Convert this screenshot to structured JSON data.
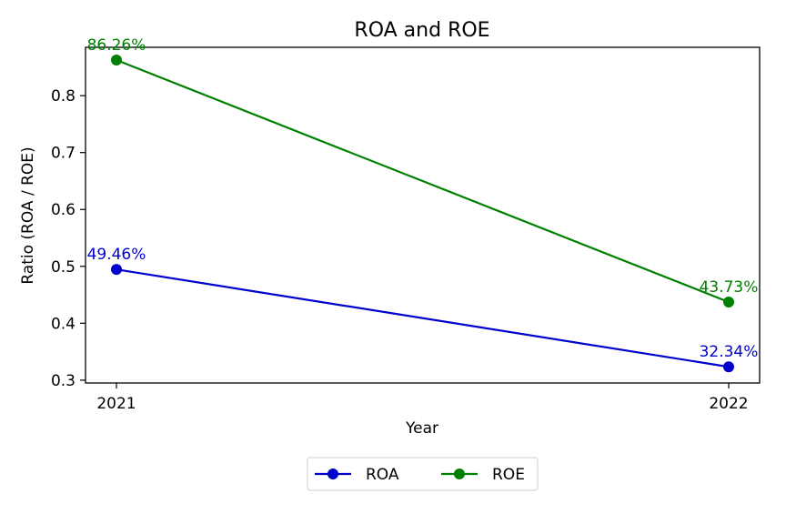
{
  "chart_data": {
    "type": "line",
    "title": "ROA and ROE",
    "xlabel": "Year",
    "ylabel": "Ratio (ROA / ROE)",
    "categories": [
      "2021",
      "2022"
    ],
    "y_ticks": [
      "0.3",
      "0.4",
      "0.5",
      "0.6",
      "0.7",
      "0.8"
    ],
    "ylim": [
      0.295,
      0.885
    ],
    "grid": false,
    "legend_position": "bottom-center",
    "series": [
      {
        "name": "ROA",
        "color": "#0000cc",
        "values": [
          0.4946,
          0.3234
        ],
        "labels": [
          "49.46%",
          "32.34%"
        ]
      },
      {
        "name": "ROE",
        "color": "#008000",
        "values": [
          0.8626,
          0.4373
        ],
        "labels": [
          "86.26%",
          "43.73%"
        ]
      }
    ]
  }
}
